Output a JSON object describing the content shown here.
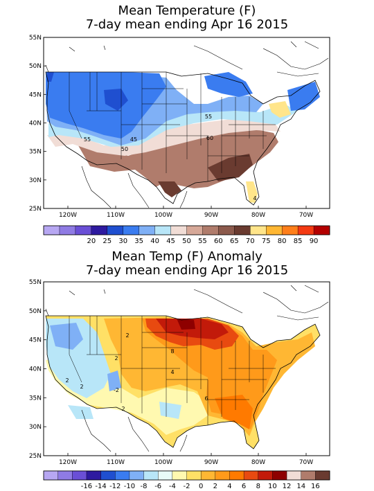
{
  "panels": [
    {
      "title_line1": "Mean Temperature (F)",
      "title_line2": "7-day mean ending Apr 16 2015",
      "lat_labels": [
        "55N",
        "50N",
        "45N",
        "40N",
        "35N",
        "30N",
        "25N"
      ],
      "lon_labels": [
        "120W",
        "110W",
        "100W",
        "90W",
        "80W",
        "70W"
      ],
      "contour_labels": [
        "55",
        "55",
        "60",
        "45",
        "50",
        "4"
      ],
      "colorbar": {
        "colors": [
          "#b7a7f2",
          "#8f7be4",
          "#6a4fd6",
          "#2e1aa0",
          "#1f4fd0",
          "#3a7cf0",
          "#7fb0f6",
          "#b8e6f8",
          "#f1ddd6",
          "#d6a898",
          "#b07c6c",
          "#8c5a4c",
          "#6a3b30",
          "#ffe58a",
          "#ffb733",
          "#ff7f1a",
          "#f43a12",
          "#b40000"
        ],
        "labels": [
          "20",
          "25",
          "30",
          "35",
          "40",
          "45",
          "50",
          "55",
          "60",
          "65",
          "70",
          "75",
          "80",
          "85",
          "90"
        ]
      }
    },
    {
      "title_line1": "Mean Temp (F) Anomaly",
      "title_line2": "7-day mean ending Apr 16 2015",
      "lat_labels": [
        "55N",
        "50N",
        "45N",
        "40N",
        "35N",
        "30N",
        "25N"
      ],
      "lon_labels": [
        "120W",
        "110W",
        "100W",
        "90W",
        "80W",
        "70W"
      ],
      "contour_labels": [
        "2",
        "2",
        "-2",
        "2",
        "8",
        "4",
        "2",
        "6",
        "2"
      ],
      "colorbar": {
        "colors": [
          "#b7a7f2",
          "#8f7be4",
          "#6a4fd6",
          "#2e1aa0",
          "#1f4fd0",
          "#3a7cf0",
          "#7fb0f6",
          "#b8e6f8",
          "#e8fbf8",
          "#fff9b0",
          "#ffe066",
          "#ffb733",
          "#ff9a1a",
          "#ff7a00",
          "#e84a10",
          "#c21a0a",
          "#8e0000",
          "#f1ddd6",
          "#b07c6c",
          "#6a3b30"
        ],
        "labels": [
          "-16",
          "-14",
          "-12",
          "-10",
          "-8",
          "-6",
          "-4",
          "-2",
          "0",
          "2",
          "4",
          "6",
          "8",
          "10",
          "12",
          "14",
          "16"
        ]
      }
    }
  ]
}
